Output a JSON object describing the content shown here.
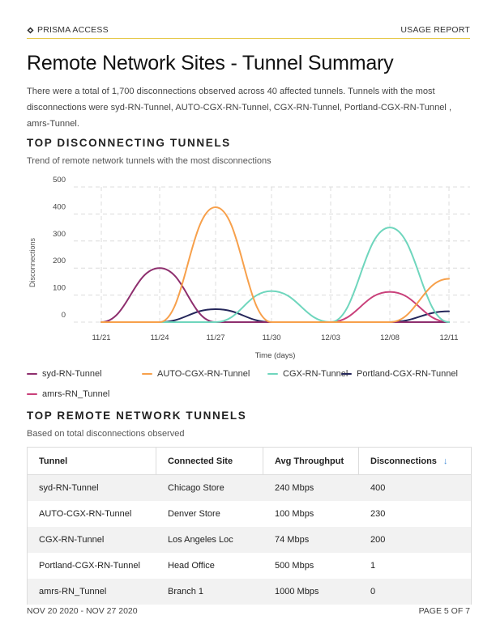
{
  "header": {
    "brand": "PRISMA ACCESS",
    "report": "USAGE REPORT"
  },
  "title": "Remote Network Sites - Tunnel Summary",
  "summary": "There were a total of 1,700 disconnections observed across 40 affected tunnels. Tunnels with the most disconnections were syd-RN-Tunnel, AUTO-CGX-RN-Tunnel, CGX-RN-Tunnel, Portland-CGX-RN-Tunnel , amrs-Tunnel.",
  "section1": {
    "title": "TOP DISCONNECTING TUNNELS",
    "subtitle": "Trend of remote network tunnels with the most disconnections"
  },
  "chart_data": {
    "type": "line",
    "title": "",
    "xlabel": "Time (days)",
    "ylabel": "Disconnections",
    "ylim": [
      0,
      500
    ],
    "yticks": [
      "500",
      "400",
      "300",
      "200",
      "100",
      "0"
    ],
    "categories": [
      "11/21",
      "11/24",
      "11/27",
      "11/30",
      "12/03",
      "12/08",
      "12/11"
    ],
    "series": [
      {
        "name": "syd-RN-Tunnel",
        "color": "#8e2f6e",
        "values": [
          0,
          200,
          0,
          0,
          0,
          0,
          0
        ]
      },
      {
        "name": "AUTO-CGX-RN-Tunnel",
        "color": "#f7a04b",
        "values": [
          0,
          0,
          425,
          0,
          0,
          0,
          160
        ]
      },
      {
        "name": "CGX-RN-Tunnel",
        "color": "#6fd6bd",
        "values": [
          0,
          0,
          0,
          115,
          0,
          350,
          0
        ]
      },
      {
        "name": "Portland-CGX-RN-Tunnel",
        "color": "#24265a",
        "values": [
          0,
          0,
          48,
          0,
          0,
          0,
          40
        ]
      },
      {
        "name": "amrs-RN_Tunnel",
        "color": "#c9407a",
        "values": [
          0,
          0,
          0,
          0,
          0,
          112,
          0
        ]
      }
    ]
  },
  "legend": {
    "items": [
      {
        "label": "syd-RN-Tunnel",
        "color": "#8e2f6e"
      },
      {
        "label": "AUTO-CGX-RN-Tunnel",
        "color": "#f7a04b"
      },
      {
        "label": "CGX-RN-Tunnel",
        "color": "#6fd6bd"
      },
      {
        "label": "Portland-CGX-RN-Tunnel",
        "color": "#24265a"
      },
      {
        "label": "amrs-RN_Tunnel",
        "color": "#c9407a"
      }
    ]
  },
  "section2": {
    "title": "TOP REMOTE NETWORK TUNNELS",
    "subtitle": "Based on total disconnections observed"
  },
  "table": {
    "headers": [
      "Tunnel",
      "Connected Site",
      "Avg Throughput",
      "Disconnections"
    ],
    "rows": [
      [
        "syd-RN-Tunnel",
        "Chicago Store",
        "240 Mbps",
        "400"
      ],
      [
        "AUTO-CGX-RN-Tunnel",
        "Denver Store",
        "100 Mbps",
        "230"
      ],
      [
        "CGX-RN-Tunnel",
        "Los Angeles Loc",
        "74 Mbps",
        "200"
      ],
      [
        "Portland-CGX-RN-Tunnel",
        "Head Office",
        "500 Mbps",
        "1"
      ],
      [
        "amrs-RN_Tunnel",
        "Branch 1",
        "1000 Mbps",
        "0"
      ]
    ]
  },
  "footer": {
    "date_range": "NOV 20 2020 - NOV 27 2020",
    "page": "PAGE 5 OF 7"
  }
}
